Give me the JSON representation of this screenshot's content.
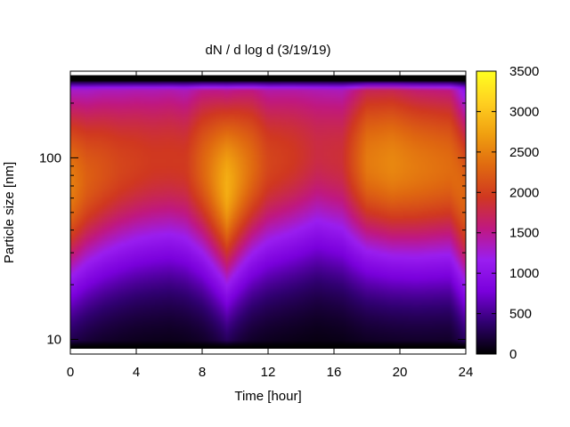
{
  "chart_data": {
    "type": "heatmap",
    "title": "dN / d log d (3/19/19)",
    "xlabel": "Time [hour]",
    "ylabel": "Particle size [nm]",
    "xlim": [
      0,
      24
    ],
    "ylim": [
      8.3,
      300
    ],
    "y_scale": "log",
    "x_ticks": [
      0,
      4,
      8,
      12,
      16,
      20,
      24
    ],
    "x_tick_labels": [
      "0",
      "4",
      "8",
      "12",
      "16",
      "20",
      "24"
    ],
    "y_ticks": [
      10,
      100
    ],
    "y_tick_labels": [
      "10",
      "100"
    ],
    "colorbar": {
      "range": [
        0,
        3500
      ],
      "ticks": [
        0,
        500,
        1000,
        1500,
        2000,
        2500,
        3000,
        3500
      ],
      "tick_labels": [
        "0",
        "500",
        "1000",
        "1500",
        "2000",
        "2500",
        "3000",
        "3500"
      ],
      "colormap": [
        "#000000",
        "#300070",
        "#7a00dc",
        "#9a1ef0",
        "#c01880",
        "#d03820",
        "#e06a10",
        "#f0a010",
        "#ffd020",
        "#ffff20"
      ]
    },
    "mode_diameter_nm": {
      "x": [
        0,
        2,
        4,
        6,
        8,
        9.5,
        11,
        13,
        15,
        17,
        19,
        21,
        23,
        24
      ],
      "values": [
        70,
        85,
        95,
        100,
        90,
        70,
        90,
        100,
        110,
        100,
        95,
        90,
        90,
        60
      ]
    },
    "peak_concentration": {
      "x": [
        0,
        1,
        3,
        5,
        7,
        8.5,
        9.5,
        10.5,
        12,
        13.5,
        15,
        16.5,
        18,
        19.5,
        21,
        23,
        24
      ],
      "values": [
        2500,
        2250,
        2050,
        1950,
        1950,
        2450,
        2850,
        2500,
        2050,
        1950,
        1800,
        1850,
        2450,
        2550,
        2450,
        2350,
        2300
      ]
    }
  }
}
